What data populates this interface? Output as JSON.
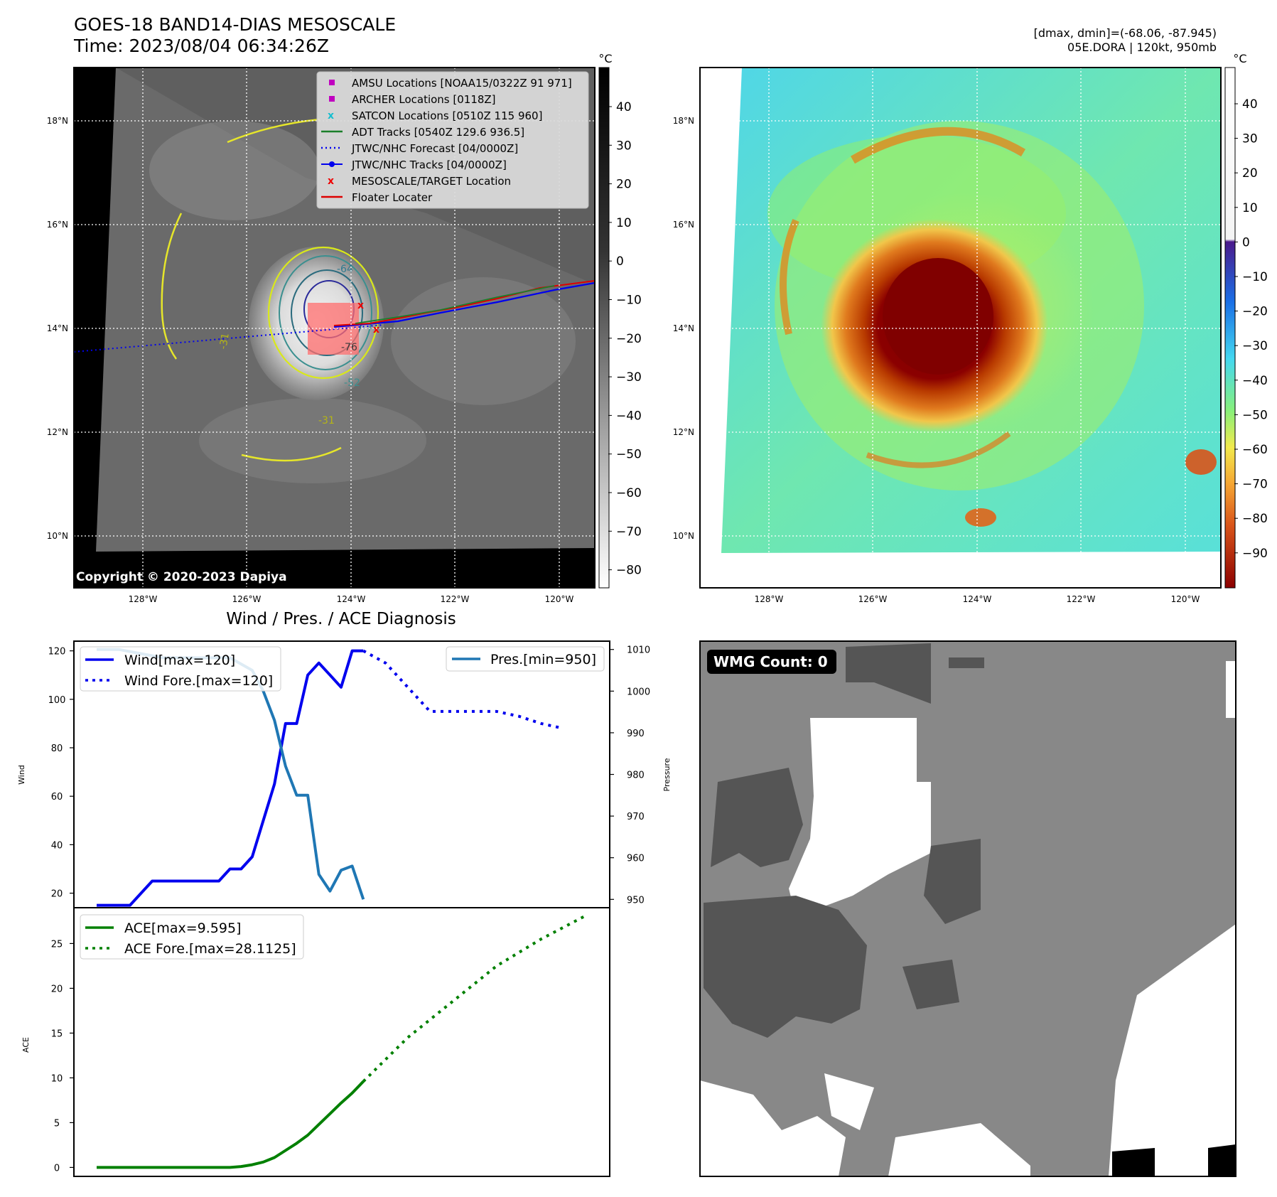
{
  "header": {
    "title": "GOES-18 BAND14-DIAS MESOSCALE",
    "time": "Time: 2023/08/04 06:34:26Z",
    "range": "[dmax, dmin]=(-68.06, -87.945)",
    "storm": "05E.DORA | 120kt, 950mb",
    "copyright": "Copyright © 2020-2023 Dapiya"
  },
  "colors": {
    "wind": "#0000ee",
    "pressure": "#1f77b4",
    "ace": "#008000",
    "amsu": "#c000c0",
    "satcon": "#17becf",
    "adt": "#1b7f2a",
    "target": "#ee0000",
    "floater": "#dd0000"
  },
  "map": {
    "lat_ticks": [
      "18°N",
      "16°N",
      "14°N",
      "12°N",
      "10°N"
    ],
    "lon_ticks": [
      "128°W",
      "126°W",
      "124°W",
      "122°W",
      "120°W"
    ],
    "legend": [
      {
        "label": "AMSU Locations [NOAA15/0322Z 91 971]",
        "icon": "square-marker"
      },
      {
        "label": "ARCHER Locations [0118Z]",
        "icon": "square-marker"
      },
      {
        "label": "SATCON Locations [0510Z 115 960]",
        "icon": "x-marker"
      },
      {
        "label": "ADT Tracks [0540Z 129.6 936.5]",
        "icon": "solid-line"
      },
      {
        "label": "JTWC/NHC Forecast [04/0000Z]",
        "icon": "dotted-line"
      },
      {
        "label": "JTWC/NHC Tracks [04/0000Z]",
        "icon": "line-dot"
      },
      {
        "label": "MESOSCALE/TARGET Location",
        "icon": "x-marker"
      },
      {
        "label": "Floater Locater",
        "icon": "solid-line"
      }
    ],
    "contour_labels": [
      "-64",
      "-76",
      "-52",
      "-31",
      "-31"
    ]
  },
  "colorbars": {
    "unit": "°C",
    "gray_ticks": [
      "40",
      "30",
      "20",
      "10",
      "0",
      "−10",
      "−20",
      "−30",
      "−40",
      "−50",
      "−60",
      "−70",
      "−80"
    ],
    "color_ticks": [
      "40",
      "30",
      "20",
      "10",
      "0",
      "−10",
      "−20",
      "−30",
      "−40",
      "−50",
      "−60",
      "−70",
      "−80",
      "−90"
    ]
  },
  "diagnosis": {
    "title": "Wind / Pres. / ACE Diagnosis"
  },
  "wmg": {
    "count_label": "WMG Count: 0"
  },
  "chart_data": [
    {
      "type": "line",
      "title": "Wind / Pres. / ACE Diagnosis",
      "ylabel": "Wind",
      "ylim": [
        14,
        124
      ],
      "y_ticks": [
        "120",
        "100",
        "80",
        "60",
        "40",
        "20"
      ],
      "series": [
        {
          "name": "Wind[max=120]",
          "axis": "left",
          "style": "solid",
          "x": [
            0,
            3,
            5,
            7,
            11,
            12,
            13,
            14,
            15,
            16,
            17,
            18,
            19,
            20,
            21,
            22,
            23,
            24
          ],
          "values": [
            15,
            15,
            25,
            25,
            25,
            30,
            30,
            35,
            50,
            65,
            90,
            90,
            110,
            115,
            110,
            105,
            120,
            120
          ]
        },
        {
          "name": "Wind Fore.[max=120]",
          "axis": "left",
          "style": "dotted",
          "x": [
            24,
            26,
            28,
            30,
            32,
            34,
            36,
            38,
            40,
            42
          ],
          "values": [
            120,
            115,
            105,
            95,
            95,
            95,
            95,
            93,
            90,
            88
          ]
        }
      ]
    },
    {
      "type": "line",
      "ylabel": "Pressure",
      "ylim": [
        948,
        1012
      ],
      "y_ticks": [
        "1010",
        "1000",
        "990",
        "980",
        "970",
        "960",
        "950"
      ],
      "series": [
        {
          "name": "Pres.[min=950]",
          "axis": "right",
          "style": "solid",
          "x": [
            0,
            2,
            4,
            6,
            8,
            10,
            12,
            14,
            15,
            16,
            17,
            18,
            19,
            20,
            21,
            22,
            23,
            24
          ],
          "values": [
            1010,
            1010,
            1009,
            1008,
            1008,
            1008,
            1008,
            1005,
            1000,
            993,
            982,
            975,
            975,
            956,
            952,
            957,
            958,
            950
          ]
        }
      ]
    },
    {
      "type": "line",
      "ylabel": "ACE",
      "ylim": [
        -1,
        29
      ],
      "y_ticks": [
        "25",
        "20",
        "15",
        "10",
        "5",
        "0"
      ],
      "series": [
        {
          "name": "ACE[max=9.595]",
          "style": "solid",
          "x": [
            0,
            12,
            13,
            14,
            15,
            16,
            17,
            18,
            19,
            20,
            21,
            22,
            23,
            24
          ],
          "values": [
            0,
            0,
            0.1,
            0.3,
            0.6,
            1.1,
            1.9,
            2.7,
            3.6,
            4.8,
            6.0,
            7.2,
            8.3,
            9.6
          ]
        },
        {
          "name": "ACE Fore.[max=28.1125]",
          "style": "dotted",
          "x": [
            24,
            28,
            32,
            36,
            40,
            44
          ],
          "values": [
            9.6,
            14.5,
            18.5,
            22.5,
            25.5,
            28.1
          ]
        }
      ]
    }
  ]
}
